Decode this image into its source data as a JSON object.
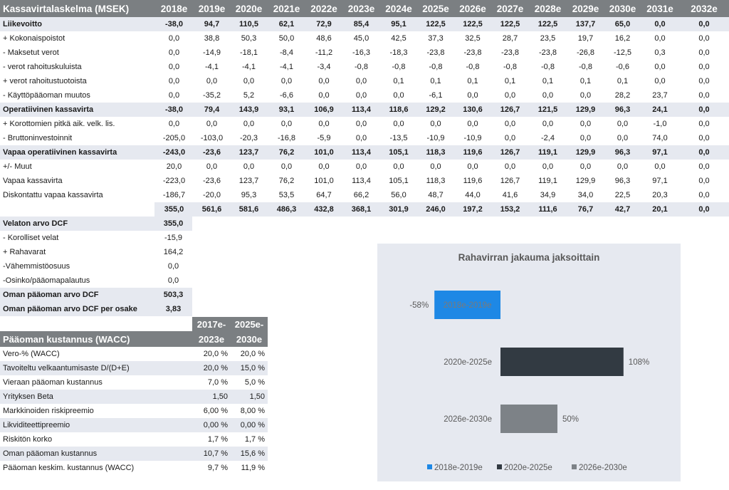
{
  "dcf": {
    "title": "Kassavirtalaskelma (MSEK)",
    "years": [
      "2018e",
      "2019e",
      "2020e",
      "2021e",
      "2022e",
      "2023e",
      "2024e",
      "2025e",
      "2026e",
      "2027e",
      "2028e",
      "2029e",
      "2030e",
      "2031e",
      "2032e"
    ],
    "rows": [
      {
        "label": "Liikevoitto",
        "bold": true,
        "values": [
          "-38,0",
          "94,7",
          "110,5",
          "62,1",
          "72,9",
          "85,4",
          "95,1",
          "122,5",
          "122,5",
          "122,5",
          "122,5",
          "137,7",
          "65,0",
          "0,0",
          "0,0"
        ]
      },
      {
        "label": "+ Kokonaispoistot",
        "bold": false,
        "values": [
          "0,0",
          "38,8",
          "50,3",
          "50,0",
          "48,6",
          "45,0",
          "42,5",
          "37,3",
          "32,5",
          "28,7",
          "23,5",
          "19,7",
          "16,2",
          "0,0",
          "0,0"
        ]
      },
      {
        "label": "- Maksetut verot",
        "bold": false,
        "values": [
          "0,0",
          "-14,9",
          "-18,1",
          "-8,4",
          "-11,2",
          "-16,3",
          "-18,3",
          "-23,8",
          "-23,8",
          "-23,8",
          "-23,8",
          "-26,8",
          "-12,5",
          "0,3",
          "0,0"
        ]
      },
      {
        "label": "- verot rahoituskuluista",
        "bold": false,
        "values": [
          "0,0",
          "-4,1",
          "-4,1",
          "-4,1",
          "-3,4",
          "-0,8",
          "-0,8",
          "-0,8",
          "-0,8",
          "-0,8",
          "-0,8",
          "-0,8",
          "-0,6",
          "0,0",
          "0,0"
        ]
      },
      {
        "label": "+ verot rahoitustuotoista",
        "bold": false,
        "values": [
          "0,0",
          "0,0",
          "0,0",
          "0,0",
          "0,0",
          "0,0",
          "0,1",
          "0,1",
          "0,1",
          "0,1",
          "0,1",
          "0,1",
          "0,1",
          "0,0",
          "0,0"
        ]
      },
      {
        "label": "- Käyttöpääoman muutos",
        "bold": false,
        "values": [
          "0,0",
          "-35,2",
          "5,2",
          "-6,6",
          "0,0",
          "0,0",
          "0,0",
          "-6,1",
          "0,0",
          "0,0",
          "0,0",
          "0,0",
          "28,2",
          "23,7",
          "0,0"
        ]
      },
      {
        "label": "Operatiivinen kassavirta",
        "bold": true,
        "values": [
          "-38,0",
          "79,4",
          "143,9",
          "93,1",
          "106,9",
          "113,4",
          "118,6",
          "129,2",
          "130,6",
          "126,7",
          "121,5",
          "129,9",
          "96,3",
          "24,1",
          "0,0"
        ]
      },
      {
        "label": "+ Korottomien pitkä aik. velk. lis.",
        "bold": false,
        "values": [
          "0,0",
          "0,0",
          "0,0",
          "0,0",
          "0,0",
          "0,0",
          "0,0",
          "0,0",
          "0,0",
          "0,0",
          "0,0",
          "0,0",
          "0,0",
          "-1,0",
          "0,0"
        ]
      },
      {
        "label": "- Bruttoninvestoinnit",
        "bold": false,
        "values": [
          "-205,0",
          "-103,0",
          "-20,3",
          "-16,8",
          "-5,9",
          "0,0",
          "-13,5",
          "-10,9",
          "-10,9",
          "0,0",
          "-2,4",
          "0,0",
          "0,0",
          "74,0",
          "0,0"
        ]
      },
      {
        "label": "Vapaa operatiivinen kassavirta",
        "bold": true,
        "values": [
          "-243,0",
          "-23,6",
          "123,7",
          "76,2",
          "101,0",
          "113,4",
          "105,1",
          "118,3",
          "119,6",
          "126,7",
          "119,1",
          "129,9",
          "96,3",
          "97,1",
          "0,0"
        ]
      },
      {
        "label": "+/- Muut",
        "bold": false,
        "values": [
          "20,0",
          "0,0",
          "0,0",
          "0,0",
          "0,0",
          "0,0",
          "0,0",
          "0,0",
          "0,0",
          "0,0",
          "0,0",
          "0,0",
          "0,0",
          "0,0",
          "0,0"
        ]
      },
      {
        "label": "Vapaa kassavirta",
        "bold": false,
        "values": [
          "-223,0",
          "-23,6",
          "123,7",
          "76,2",
          "101,0",
          "113,4",
          "105,1",
          "118,3",
          "119,6",
          "126,7",
          "119,1",
          "129,9",
          "96,3",
          "97,1",
          "0,0"
        ]
      },
      {
        "label": "Diskontattu vapaa kassavirta",
        "bold": false,
        "values": [
          "-186,7",
          "-20,0",
          "95,3",
          "53,5",
          "64,7",
          "66,2",
          "56,0",
          "48,7",
          "44,0",
          "41,6",
          "34,9",
          "34,0",
          "22,5",
          "20,3",
          "0,0"
        ]
      }
    ],
    "cumulative": [
      "355,0",
      "561,6",
      "581,6",
      "486,3",
      "432,8",
      "368,1",
      "301,9",
      "246,0",
      "197,2",
      "153,2",
      "111,6",
      "76,7",
      "42,7",
      "20,1",
      "0,0"
    ]
  },
  "valuation": [
    {
      "label": "Velaton arvo DCF",
      "value": "355,0",
      "bold": true
    },
    {
      "label": "- Korolliset velat",
      "value": "-15,9",
      "bold": false
    },
    {
      "label": "+ Rahavarat",
      "value": "164,2",
      "bold": false
    },
    {
      "label": "-Vähemmistöosuus",
      "value": "0,0",
      "bold": false
    },
    {
      "label": "-Osinko/pääomapalautus",
      "value": "0,0",
      "bold": false
    },
    {
      "label": "Oman pääoman arvo DCF",
      "value": "503,3",
      "bold": true
    },
    {
      "label": "Oman pääoman arvo DCF per osake",
      "value": "3,83",
      "bold": true
    }
  ],
  "wacc": {
    "title": "Pääoman kustannus (WACC)",
    "col1_top": "2017e-",
    "col1_bottom": "2023e",
    "col2_top": "2025e-",
    "col2_bottom": "2030e",
    "rows": [
      {
        "label": "Vero-% (WACC)",
        "v1": "20,0 %",
        "v2": "20,0 %"
      },
      {
        "label": "Tavoiteltu velkaantumisaste D/(D+E)",
        "v1": "20,0 %",
        "v2": "15,0 %"
      },
      {
        "label": "Vieraan pääoman kustannus",
        "v1": "7,0 %",
        "v2": "5,0 %"
      },
      {
        "label": "Yrityksen Beta",
        "v1": "1,50",
        "v2": "1,50"
      },
      {
        "label": "Markkinoiden riskipreemio",
        "v1": "6,00 %",
        "v2": "8,00 %"
      },
      {
        "label": "Likviditeettipreemio",
        "v1": "0,00 %",
        "v2": "0,00 %"
      },
      {
        "label": "Riskitön korko",
        "v1": "1,7 %",
        "v2": "1,7 %"
      },
      {
        "label": "Oman pääoman kustannus",
        "v1": "10,7 %",
        "v2": "15,6 %"
      },
      {
        "label": "Pääoman keskim. kustannus (WACC)",
        "v1": "9,7 %",
        "v2": "11,9 %"
      }
    ]
  },
  "chart_data": {
    "type": "bar",
    "orientation": "horizontal",
    "title": "Rahavirran jakauma jaksoittain",
    "categories": [
      "2018e-2019e",
      "2020e-2025e",
      "2026e-2030e"
    ],
    "values": [
      -58,
      108,
      50
    ],
    "data_labels": [
      "-58%",
      "108%",
      "50%"
    ],
    "unit": "%",
    "colors": [
      "#1e88e5",
      "#323a42",
      "#7d8287"
    ],
    "legend": [
      "2018e-2019e",
      "2020e-2025e",
      "2026e-2030e"
    ],
    "legend_position": "bottom",
    "grid": false
  }
}
